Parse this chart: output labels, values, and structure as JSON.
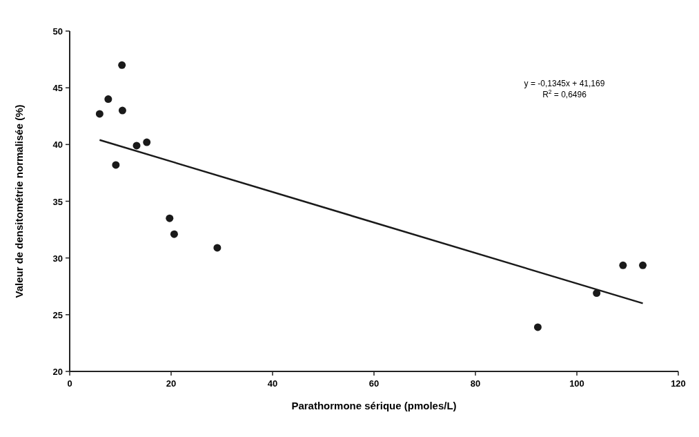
{
  "chart_data": {
    "type": "scatter",
    "xlabel": "Parathormone sérique (pmoles/L)",
    "ylabel": "Valeur de densitométrie normalisée (%)",
    "xlim": [
      0,
      120
    ],
    "xticks": [
      0,
      20,
      40,
      60,
      80,
      100,
      120
    ],
    "ylim": [
      20,
      50
    ],
    "yticks": [
      20,
      25,
      30,
      35,
      40,
      45,
      50
    ],
    "grid": false,
    "marker": "circle",
    "series": [
      {
        "color": "#1a1a1a",
        "x": [
          5.9,
          7.6,
          10.3,
          10.4,
          9.1,
          13.2,
          15.2,
          19.7,
          20.6,
          29.1,
          92.3,
          103.9,
          109.1,
          113.0
        ],
        "values": [
          42.7,
          44.0,
          47.0,
          43.0,
          38.2,
          39.9,
          40.2,
          33.5,
          32.1,
          30.9,
          23.9,
          26.9,
          29.35,
          29.35
        ]
      },
      {
        "type": "line",
        "color": "#1a1a1a",
        "x": [
          5.9,
          113.0
        ],
        "values": [
          40.4,
          26.0
        ],
        "marker": "none",
        "line_style": "solid"
      }
    ],
    "annotations": [
      "y = -0,1345x + 41,169",
      "R$^{2}$ = 0,6496"
    ]
  }
}
